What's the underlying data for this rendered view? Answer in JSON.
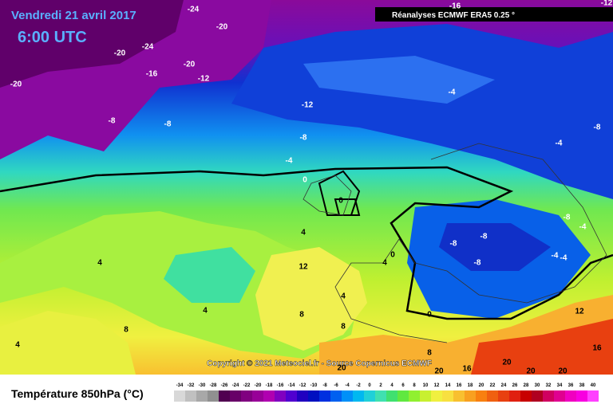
{
  "header": {
    "date": "Vendredi 21 avril 2017",
    "time": "6:00 UTC",
    "source": "Réanalyses ECMWF ERA5 0.25 °"
  },
  "copyright": "Copyright © 2021 Meteociel.fr - Source Copernicus ECMWF",
  "legend_title": "Température 850hPa (°C)",
  "colorbar": {
    "labels": [
      -34,
      -32,
      -30,
      -28,
      -26,
      -24,
      -22,
      -20,
      -18,
      -16,
      -14,
      -12,
      -10,
      -8,
      -6,
      -4,
      -2,
      0,
      2,
      4,
      6,
      8,
      10,
      12,
      14,
      16,
      18,
      20,
      22,
      24,
      26,
      28,
      30,
      32,
      34,
      36,
      38,
      40
    ],
    "colors": [
      "#d8d8d8",
      "#c0c0c0",
      "#a8a8a8",
      "#909090",
      "#500050",
      "#680068",
      "#800080",
      "#980098",
      "#b000b0",
      "#8000c0",
      "#5000d0",
      "#2000c0",
      "#0010c0",
      "#0030e0",
      "#0060f0",
      "#0090f8",
      "#00b8f0",
      "#20d0d8",
      "#40e0b0",
      "#40e070",
      "#60e840",
      "#90f030",
      "#c8f030",
      "#f0f040",
      "#f8e040",
      "#f8c030",
      "#f8a020",
      "#f88010",
      "#f06010",
      "#e84010",
      "#e02010",
      "#c80000",
      "#b00020",
      "#d00060",
      "#e00090",
      "#f000c0",
      "#f800e0",
      "#ff40ff"
    ]
  },
  "contour_labels": [
    -24,
    -20,
    -20,
    -24,
    -20,
    -16,
    -12,
    -20,
    -12,
    -8,
    -8,
    -8,
    -4,
    0,
    -16,
    -12,
    -4,
    -8,
    -4,
    -8,
    -4,
    -8,
    -8,
    -8,
    -4,
    -4,
    0,
    4,
    4,
    12,
    4,
    4,
    0,
    8,
    4,
    4,
    8,
    8,
    0,
    8,
    12,
    16,
    20,
    20,
    16,
    20,
    20,
    20
  ]
}
